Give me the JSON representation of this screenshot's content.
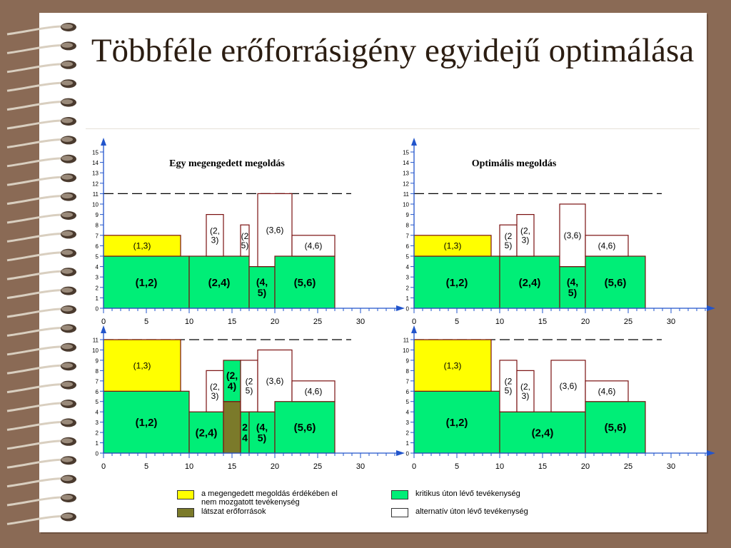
{
  "slide": {
    "title": "Többféle erőforrásigény egyidejű optimálása"
  },
  "legend": [
    {
      "color": "#ffff00",
      "text": "a megengedett megoldás érdékében el\nnem mozgatott tevékenység"
    },
    {
      "color": "#00ee77",
      "text": "kritikus úton lévő tevékenység"
    },
    {
      "color": "#7b7a2a",
      "text": "látszat erőforrások"
    },
    {
      "color": "#ffffff",
      "text": "alternatív úton lévő tevékenység"
    }
  ],
  "colors": {
    "critical": "#00ee77",
    "fixed": "#ffff00",
    "phantom": "#7b7a2a",
    "alternative": "#ffffff",
    "outline": "#7a1010"
  },
  "chart_data": [
    {
      "type": "bar",
      "title": "Egy megengedett megoldás",
      "xticks": [
        "0",
        "5",
        "10",
        "15",
        "20",
        "25",
        "30"
      ],
      "xlim": [
        0,
        35
      ],
      "ylim": [
        0,
        15
      ],
      "yticks": [
        "0",
        "1",
        "2",
        "3",
        "4",
        "5",
        "6",
        "7",
        "8",
        "9",
        "10",
        "11",
        "12",
        "13",
        "14",
        "15"
      ],
      "limit": 11,
      "blocks": [
        {
          "label": "(1,2)",
          "kind": "critical",
          "x0": 0,
          "x1": 10,
          "y0": 0,
          "y1": 5
        },
        {
          "label": "(1,3)",
          "kind": "fixed",
          "x0": 0,
          "x1": 9,
          "y0": 5,
          "y1": 7
        },
        {
          "label": "(2,4)",
          "kind": "critical",
          "x0": 10,
          "x1": 17,
          "y0": 0,
          "y1": 5
        },
        {
          "label": "(2,\n3)",
          "kind": "alternative",
          "x0": 12,
          "x1": 14,
          "y0": 5,
          "y1": 9
        },
        {
          "label": "(2\n5)",
          "kind": "alternative",
          "x0": 16,
          "x1": 17,
          "y0": 5,
          "y1": 8
        },
        {
          "label": "(4,\n5)",
          "kind": "critical",
          "x0": 17,
          "x1": 20,
          "y0": 0,
          "y1": 4
        },
        {
          "label": "(3,6)",
          "kind": "alternative",
          "x0": 18,
          "x1": 22,
          "y0": 4,
          "y1": 11
        },
        {
          "label": "(5,6)",
          "kind": "critical",
          "x0": 20,
          "x1": 27,
          "y0": 0,
          "y1": 5
        },
        {
          "label": "(4,6)",
          "kind": "alternative",
          "x0": 22,
          "x1": 27,
          "y0": 5,
          "y1": 7
        }
      ]
    },
    {
      "type": "bar",
      "title": "Optimális megoldás",
      "xticks": [
        "0",
        "5",
        "10",
        "15",
        "20",
        "25",
        "30"
      ],
      "xlim": [
        0,
        35
      ],
      "ylim": [
        0,
        15
      ],
      "yticks": [
        "0",
        "1",
        "2",
        "3",
        "4",
        "5",
        "6",
        "7",
        "8",
        "9",
        "10",
        "11",
        "12",
        "13",
        "14",
        "15"
      ],
      "limit": 11,
      "blocks": [
        {
          "label": "(1,2)",
          "kind": "critical",
          "x0": 0,
          "x1": 10,
          "y0": 0,
          "y1": 5
        },
        {
          "label": "(1,3)",
          "kind": "fixed",
          "x0": 0,
          "x1": 9,
          "y0": 5,
          "y1": 7
        },
        {
          "label": "(2,4)",
          "kind": "critical",
          "x0": 10,
          "x1": 17,
          "y0": 0,
          "y1": 5
        },
        {
          "label": "(2\n5)",
          "kind": "alternative",
          "x0": 10,
          "x1": 12,
          "y0": 5,
          "y1": 8
        },
        {
          "label": "(2,\n3)",
          "kind": "alternative",
          "x0": 12,
          "x1": 14,
          "y0": 5,
          "y1": 9
        },
        {
          "label": "(4,\n5)",
          "kind": "critical",
          "x0": 17,
          "x1": 20,
          "y0": 0,
          "y1": 4
        },
        {
          "label": "(3,6)",
          "kind": "alternative",
          "x0": 17,
          "x1": 20,
          "y0": 4,
          "y1": 10
        },
        {
          "label": "(5,6)",
          "kind": "critical",
          "x0": 20,
          "x1": 27,
          "y0": 0,
          "y1": 5
        },
        {
          "label": "(4,6)",
          "kind": "alternative",
          "x0": 20,
          "x1": 25,
          "y0": 5,
          "y1": 7
        }
      ]
    },
    {
      "type": "bar",
      "title": "",
      "xticks": [
        "0",
        "5",
        "10",
        "15",
        "20",
        "25",
        "30"
      ],
      "xlim": [
        0,
        35
      ],
      "ylim": [
        0,
        11
      ],
      "yticks": [
        "0",
        "1",
        "2",
        "3",
        "4",
        "5",
        "6",
        "7",
        "8",
        "9",
        "10",
        "11"
      ],
      "limit": 11,
      "blocks": [
        {
          "label": "(1,2)",
          "kind": "critical",
          "x0": 0,
          "x1": 10,
          "y0": 0,
          "y1": 6
        },
        {
          "label": "(1,3)",
          "kind": "fixed",
          "x0": 0,
          "x1": 9,
          "y0": 6,
          "y1": 11
        },
        {
          "label": "(2,4)",
          "kind": "critical",
          "x0": 10,
          "x1": 14,
          "y0": 0,
          "y1": 4
        },
        {
          "label": "(2,\n3)",
          "kind": "alternative",
          "x0": 12,
          "x1": 14,
          "y0": 4,
          "y1": 8
        },
        {
          "label": "",
          "kind": "phantom",
          "x0": 14,
          "x1": 16,
          "y0": 0,
          "y1": 5
        },
        {
          "label": "(2,\n4)",
          "kind": "critical",
          "x0": 14,
          "x1": 16,
          "y0": 5,
          "y1": 9
        },
        {
          "label": "2\n4",
          "kind": "critical",
          "x0": 16,
          "x1": 17,
          "y0": 0,
          "y1": 4
        },
        {
          "label": "(2\n5)",
          "kind": "alternative",
          "x0": 16,
          "x1": 18,
          "y0": 4,
          "y1": 9
        },
        {
          "label": "(4,\n5)",
          "kind": "critical",
          "x0": 17,
          "x1": 20,
          "y0": 0,
          "y1": 4
        },
        {
          "label": "(3,6)",
          "kind": "alternative",
          "x0": 18,
          "x1": 22,
          "y0": 4,
          "y1": 10
        },
        {
          "label": "(5,6)",
          "kind": "critical",
          "x0": 20,
          "x1": 27,
          "y0": 0,
          "y1": 5
        },
        {
          "label": "(4,6)",
          "kind": "alternative",
          "x0": 22,
          "x1": 27,
          "y0": 5,
          "y1": 7
        }
      ]
    },
    {
      "type": "bar",
      "title": "",
      "xticks": [
        "0",
        "5",
        "10",
        "15",
        "20",
        "25",
        "30"
      ],
      "xlim": [
        0,
        35
      ],
      "ylim": [
        0,
        11
      ],
      "yticks": [
        "0",
        "1",
        "2",
        "3",
        "4",
        "5",
        "6",
        "7",
        "8",
        "9",
        "10",
        "11"
      ],
      "limit": 11,
      "blocks": [
        {
          "label": "(1,2)",
          "kind": "critical",
          "x0": 0,
          "x1": 10,
          "y0": 0,
          "y1": 6
        },
        {
          "label": "(1,3)",
          "kind": "fixed",
          "x0": 0,
          "x1": 9,
          "y0": 6,
          "y1": 11
        },
        {
          "label": "(2,4)",
          "kind": "critical",
          "x0": 10,
          "x1": 20,
          "y0": 0,
          "y1": 4
        },
        {
          "label": "(2\n5)",
          "kind": "alternative",
          "x0": 10,
          "x1": 12,
          "y0": 4,
          "y1": 9
        },
        {
          "label": "(2,\n3)",
          "kind": "alternative",
          "x0": 12,
          "x1": 14,
          "y0": 4,
          "y1": 8
        },
        {
          "label": "(3,6)",
          "kind": "alternative",
          "x0": 16,
          "x1": 20,
          "y0": 4,
          "y1": 9
        },
        {
          "label": "(5,6)",
          "kind": "critical",
          "x0": 20,
          "x1": 27,
          "y0": 0,
          "y1": 5
        },
        {
          "label": "(4,6)",
          "kind": "alternative",
          "x0": 20,
          "x1": 25,
          "y0": 5,
          "y1": 7
        }
      ]
    }
  ]
}
